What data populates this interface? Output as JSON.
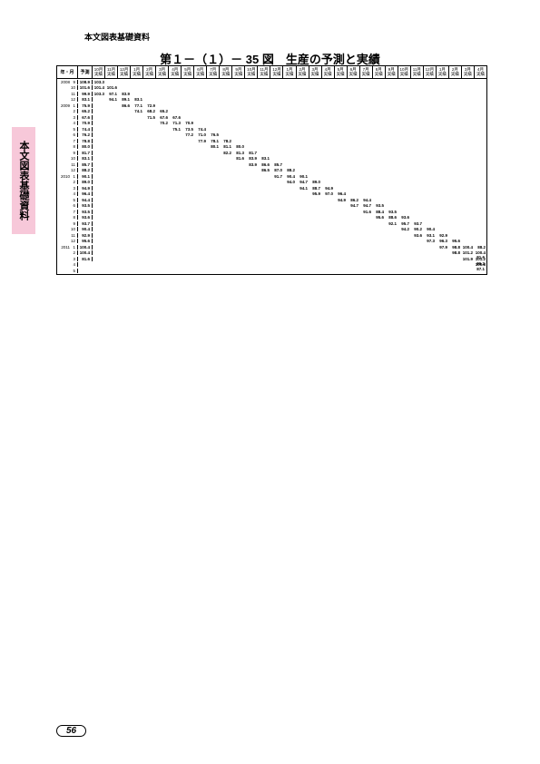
{
  "header_small": "本文図表基礎資料",
  "side_tab": "本文図表基礎資料",
  "title": "第１－（１）－ 35 図　生産の予測と実績",
  "page_num": "56",
  "col_year_month": "年・月",
  "col_forecast": "予測",
  "period_cols": [
    "10月実績",
    "11月実績",
    "12月実績",
    "1月実績",
    "2月実績",
    "3月実績",
    "4月実績",
    "5月実績",
    "6月実績",
    "7月実績",
    "8月実績",
    "9月実績",
    "10月実績",
    "11月実績",
    "12月実績",
    "1月実績",
    "2月実績",
    "3月実績",
    "4月実績",
    "5月実績",
    "6月実績",
    "7月実績",
    "8月実績",
    "9月実績",
    "10月実績",
    "11月実績",
    "12月実績",
    "1月実績",
    "2月実績",
    "3月実績",
    "4月実績"
  ],
  "rows": [
    {
      "y": "2008",
      "m": "9",
      "f": "108.9",
      "cells": [
        "103.3",
        "",
        "",
        "",
        "",
        "",
        "",
        "",
        "",
        "",
        "",
        "",
        "",
        "",
        "",
        "",
        "",
        "",
        "",
        "",
        "",
        "",
        "",
        "",
        "",
        "",
        "",
        "",
        "",
        "",
        ""
      ]
    },
    {
      "y": "",
      "m": "10",
      "f": "101.6",
      "cells": [
        "101.4",
        "101.6",
        "",
        "",
        "",
        "",
        "",
        "",
        "",
        "",
        "",
        "",
        "",
        "",
        "",
        "",
        "",
        "",
        "",
        "",
        "",
        "",
        "",
        "",
        "",
        "",
        "",
        "",
        "",
        "",
        ""
      ]
    },
    {
      "y": "",
      "m": "11",
      "f": "99.9",
      "cells": [
        "103.3",
        "97.1",
        "83.9",
        "",
        "",
        "",
        "",
        "",
        "",
        "",
        "",
        "",
        "",
        "",
        "",
        "",
        "",
        "",
        "",
        "",
        "",
        "",
        "",
        "",
        "",
        "",
        "",
        "",
        "",
        "",
        ""
      ]
    },
    {
      "y": "",
      "m": "12",
      "f": "83.1",
      "cells": [
        "",
        "94.1",
        "89.1",
        "83.1",
        "",
        "",
        "",
        "",
        "",
        "",
        "",
        "",
        "",
        "",
        "",
        "",
        "",
        "",
        "",
        "",
        "",
        "",
        "",
        "",
        "",
        "",
        "",
        "",
        "",
        "",
        ""
      ]
    },
    {
      "y": "2009",
      "m": "1",
      "f": "75.9",
      "cells": [
        "",
        "",
        "86.6",
        "77.1",
        "72.9",
        "",
        "",
        "",
        "",
        "",
        "",
        "",
        "",
        "",
        "",
        "",
        "",
        "",
        "",
        "",
        "",
        "",
        "",
        "",
        "",
        "",
        "",
        "",
        "",
        "",
        ""
      ]
    },
    {
      "y": "",
      "m": "2",
      "f": "65.2",
      "cells": [
        "",
        "",
        "",
        "74.1",
        "68.2",
        "65.2",
        "",
        "",
        "",
        "",
        "",
        "",
        "",
        "",
        "",
        "",
        "",
        "",
        "",
        "",
        "",
        "",
        "",
        "",
        "",
        "",
        "",
        "",
        "",
        "",
        ""
      ]
    },
    {
      "y": "",
      "m": "3",
      "f": "67.6",
      "cells": [
        "",
        "",
        "",
        "",
        "71.5",
        "67.6",
        "67.6",
        "",
        "",
        "",
        "",
        "",
        "",
        "",
        "",
        "",
        "",
        "",
        "",
        "",
        "",
        "",
        "",
        "",
        "",
        "",
        "",
        "",
        "",
        "",
        ""
      ]
    },
    {
      "y": "",
      "m": "4",
      "f": "70.9",
      "cells": [
        "",
        "",
        "",
        "",
        "",
        "70.2",
        "71.3",
        "70.9",
        "",
        "",
        "",
        "",
        "",
        "",
        "",
        "",
        "",
        "",
        "",
        "",
        "",
        "",
        "",
        "",
        "",
        "",
        "",
        "",
        "",
        "",
        ""
      ]
    },
    {
      "y": "",
      "m": "5",
      "f": "74.4",
      "cells": [
        "",
        "",
        "",
        "",
        "",
        "",
        "75.1",
        "73.5",
        "74.4",
        "",
        "",
        "",
        "",
        "",
        "",
        "",
        "",
        "",
        "",
        "",
        "",
        "",
        "",
        "",
        "",
        "",
        "",
        "",
        "",
        "",
        ""
      ]
    },
    {
      "y": "",
      "m": "6",
      "f": "76.2",
      "cells": [
        "",
        "",
        "",
        "",
        "",
        "",
        "",
        "77.2",
        "71.0",
        "76.5",
        "",
        "",
        "",
        "",
        "",
        "",
        "",
        "",
        "",
        "",
        "",
        "",
        "",
        "",
        "",
        "",
        "",
        "",
        "",
        "",
        ""
      ]
    },
    {
      "y": "",
      "m": "7",
      "f": "78.8",
      "cells": [
        "",
        "",
        "",
        "",
        "",
        "",
        "",
        "",
        "77.9",
        "78.1",
        "78.2",
        "",
        "",
        "",
        "",
        "",
        "",
        "",
        "",
        "",
        "",
        "",
        "",
        "",
        "",
        "",
        "",
        "",
        "",
        "",
        ""
      ]
    },
    {
      "y": "",
      "m": "8",
      "f": "80.0",
      "cells": [
        "",
        "",
        "",
        "",
        "",
        "",
        "",
        "",
        "",
        "80.1",
        "81.1",
        "80.0",
        "",
        "",
        "",
        "",
        "",
        "",
        "",
        "",
        "",
        "",
        "",
        "",
        "",
        "",
        "",
        "",
        "",
        "",
        ""
      ]
    },
    {
      "y": "",
      "m": "9",
      "f": "81.7",
      "cells": [
        "",
        "",
        "",
        "",
        "",
        "",
        "",
        "",
        "",
        "",
        "82.2",
        "81.3",
        "81.7",
        "",
        "",
        "",
        "",
        "",
        "",
        "",
        "",
        "",
        "",
        "",
        "",
        "",
        "",
        "",
        "",
        "",
        ""
      ]
    },
    {
      "y": "",
      "m": "10",
      "f": "83.1",
      "cells": [
        "",
        "",
        "",
        "",
        "",
        "",
        "",
        "",
        "",
        "",
        "",
        "81.6",
        "83.9",
        "83.1",
        "",
        "",
        "",
        "",
        "",
        "",
        "",
        "",
        "",
        "",
        "",
        "",
        "",
        "",
        "",
        "",
        ""
      ]
    },
    {
      "y": "",
      "m": "11",
      "f": "85.7",
      "cells": [
        "",
        "",
        "",
        "",
        "",
        "",
        "",
        "",
        "",
        "",
        "",
        "",
        "83.9",
        "86.6",
        "85.7",
        "",
        "",
        "",
        "",
        "",
        "",
        "",
        "",
        "",
        "",
        "",
        "",
        "",
        "",
        "",
        ""
      ]
    },
    {
      "y": "",
      "m": "12",
      "f": "88.2",
      "cells": [
        "",
        "",
        "",
        "",
        "",
        "",
        "",
        "",
        "",
        "",
        "",
        "",
        "",
        "86.5",
        "87.0",
        "88.2",
        "",
        "",
        "",
        "",
        "",
        "",
        "",
        "",
        "",
        "",
        "",
        "",
        "",
        "",
        ""
      ]
    },
    {
      "y": "2010",
      "m": "1",
      "f": "90.1",
      "cells": [
        "",
        "",
        "",
        "",
        "",
        "",
        "",
        "",
        "",
        "",
        "",
        "",
        "",
        "",
        "91.7",
        "90.4",
        "90.1",
        "",
        "",
        "",
        "",
        "",
        "",
        "",
        "",
        "",
        "",
        "",
        "",
        "",
        ""
      ]
    },
    {
      "y": "",
      "m": "2",
      "f": "89.0",
      "cells": [
        "",
        "",
        "",
        "",
        "",
        "",
        "",
        "",
        "",
        "",
        "",
        "",
        "",
        "",
        "",
        "94.0",
        "94.7",
        "89.0",
        "",
        "",
        "",
        "",
        "",
        "",
        "",
        "",
        "",
        "",
        "",
        "",
        ""
      ]
    },
    {
      "y": "",
      "m": "3",
      "f": "94.9",
      "cells": [
        "",
        "",
        "",
        "",
        "",
        "",
        "",
        "",
        "",
        "",
        "",
        "",
        "",
        "",
        "",
        "",
        "94.1",
        "88.7",
        "94.9",
        "",
        "",
        "",
        "",
        "",
        "",
        "",
        "",
        "",
        "",
        "",
        ""
      ]
    },
    {
      "y": "",
      "m": "4",
      "f": "96.4",
      "cells": [
        "",
        "",
        "",
        "",
        "",
        "",
        "",
        "",
        "",
        "",
        "",
        "",
        "",
        "",
        "",
        "",
        "",
        "95.9",
        "97.0",
        "96.4",
        "",
        "",
        "",
        "",
        "",
        "",
        "",
        "",
        "",
        "",
        ""
      ]
    },
    {
      "y": "",
      "m": "5",
      "f": "94.4",
      "cells": [
        "",
        "",
        "",
        "",
        "",
        "",
        "",
        "",
        "",
        "",
        "",
        "",
        "",
        "",
        "",
        "",
        "",
        "",
        "",
        "94.9",
        "86.2",
        "94.4",
        "",
        "",
        "",
        "",
        "",
        "",
        "",
        "",
        ""
      ]
    },
    {
      "y": "",
      "m": "6",
      "f": "93.5",
      "cells": [
        "",
        "",
        "",
        "",
        "",
        "",
        "",
        "",
        "",
        "",
        "",
        "",
        "",
        "",
        "",
        "",
        "",
        "",
        "",
        "",
        "94.7",
        "94.7",
        "93.5",
        "",
        "",
        "",
        "",
        "",
        "",
        "",
        ""
      ]
    },
    {
      "y": "",
      "m": "7",
      "f": "93.5",
      "cells": [
        "",
        "",
        "",
        "",
        "",
        "",
        "",
        "",
        "",
        "",
        "",
        "",
        "",
        "",
        "",
        "",
        "",
        "",
        "",
        "",
        "",
        "91.6",
        "88.4",
        "93.5",
        "",
        "",
        "",
        "",
        "",
        "",
        ""
      ]
    },
    {
      "y": "",
      "m": "8",
      "f": "93.6",
      "cells": [
        "",
        "",
        "",
        "",
        "",
        "",
        "",
        "",
        "",
        "",
        "",
        "",
        "",
        "",
        "",
        "",
        "",
        "",
        "",
        "",
        "",
        "",
        "95.6",
        "88.6",
        "93.6",
        "",
        "",
        "",
        "",
        "",
        ""
      ]
    },
    {
      "y": "",
      "m": "9",
      "f": "93.7",
      "cells": [
        "",
        "",
        "",
        "",
        "",
        "",
        "",
        "",
        "",
        "",
        "",
        "",
        "",
        "",
        "",
        "",
        "",
        "",
        "",
        "",
        "",
        "",
        "",
        "92.1",
        "95.7",
        "93.7",
        "",
        "",
        "",
        "",
        ""
      ]
    },
    {
      "y": "",
      "m": "10",
      "f": "90.4",
      "cells": [
        "",
        "",
        "",
        "",
        "",
        "",
        "",
        "",
        "",
        "",
        "",
        "",
        "",
        "",
        "",
        "",
        "",
        "",
        "",
        "",
        "",
        "",
        "",
        "",
        "94.2",
        "90.2",
        "90.4",
        "",
        "",
        "",
        ""
      ]
    },
    {
      "y": "",
      "m": "11",
      "f": "92.9",
      "cells": [
        "",
        "",
        "",
        "",
        "",
        "",
        "",
        "",
        "",
        "",
        "",
        "",
        "",
        "",
        "",
        "",
        "",
        "",
        "",
        "",
        "",
        "",
        "",
        "",
        "",
        "93.6",
        "93.1",
        "92.9",
        "",
        "",
        ""
      ]
    },
    {
      "y": "",
      "m": "12",
      "f": "95.6",
      "cells": [
        "",
        "",
        "",
        "",
        "",
        "",
        "",
        "",
        "",
        "",
        "",
        "",
        "",
        "",
        "",
        "",
        "",
        "",
        "",
        "",
        "",
        "",
        "",
        "",
        "",
        "",
        "97.3",
        "96.3",
        "95.6",
        "",
        ""
      ]
    },
    {
      "y": "2011",
      "m": "1",
      "f": "100.4",
      "cells": [
        "",
        "",
        "",
        "",
        "",
        "",
        "",
        "",
        "",
        "",
        "",
        "",
        "",
        "",
        "",
        "",
        "",
        "",
        "",
        "",
        "",
        "",
        "",
        "",
        "",
        "",
        "",
        "97.9",
        "98.8",
        "100.4",
        "88.2"
      ]
    },
    {
      "y": "",
      "m": "2",
      "f": "100.4",
      "cells": [
        "",
        "",
        "",
        "",
        "",
        "",
        "",
        "",
        "",
        "",
        "",
        "",
        "",
        "",
        "",
        "",
        "",
        "",
        "",
        "",
        "",
        "",
        "",
        "",
        "",
        "",
        "",
        "",
        "98.8",
        "101.2",
        "100.4"
      ]
    },
    {
      "y": "",
      "m": "3",
      "f": "81.6",
      "cells": [
        "",
        "",
        "",
        "",
        "",
        "",
        "",
        "",
        "",
        "",
        "",
        "",
        "",
        "",
        "",
        "",
        "",
        "",
        "",
        "",
        "",
        "",
        "",
        "",
        "",
        "",
        "",
        "",
        "",
        "101.9",
        "101.2"
      ]
    },
    {
      "y": "",
      "m": "4",
      "f": "",
      "cells": [
        "",
        "",
        "",
        "",
        "",
        "",
        "",
        "",
        "",
        "",
        "",
        "",
        "",
        "",
        "",
        "",
        "",
        "",
        "",
        "",
        "",
        "",
        "",
        "",
        "",
        "",
        "",
        "",
        "",
        "",
        "100.8"
      ]
    },
    {
      "y": "",
      "m": "5",
      "f": "",
      "cells": [
        "",
        "",
        "",
        "",
        "",
        "",
        "",
        "",
        "",
        "",
        "",
        "",
        "",
        "",
        "",
        "",
        "",
        "",
        "",
        "",
        "",
        "",
        "",
        "",
        "",
        "",
        "",
        "",
        "",
        "",
        ""
      ]
    }
  ],
  "final_vals": [
    "81.6",
    "86.2",
    "87.1"
  ],
  "colors": {
    "side_tab_bg": "#f7c8d9",
    "text": "#000000",
    "bg": "#ffffff"
  }
}
